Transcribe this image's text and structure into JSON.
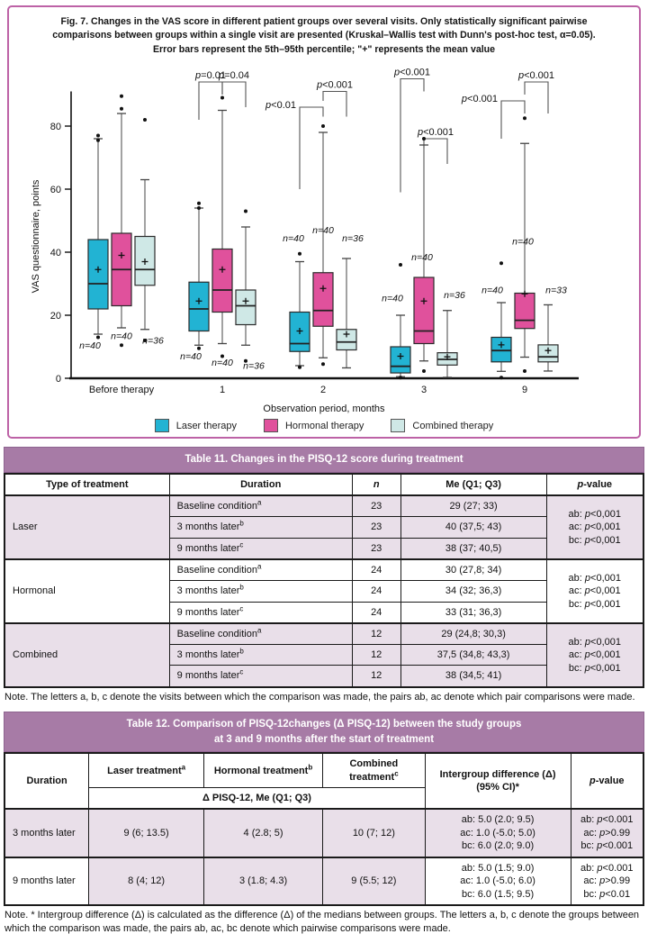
{
  "figure": {
    "caption_line1": "Fig. 7. Changes in the VAS score in different patient groups over several visits. Only statistically significant pairwise",
    "caption_line2": "comparisons between groups within a single visit are presented (Kruskal–Wallis test with Dunn's post-hoc test, α=0.05).",
    "caption_line3": "Error bars represent the 5th–95th percentile; \"+\" represents the mean value",
    "border_color": "#bd62a6"
  },
  "chart_data": {
    "type": "boxplot",
    "ylabel": "VAS questionnaire, points",
    "xlabel": "Observation period, months",
    "ylim": [
      0,
      96
    ],
    "yticks": [
      0,
      20,
      40,
      60,
      80
    ],
    "categories": [
      "Before therapy",
      "1",
      "2",
      "3",
      "9"
    ],
    "series": [
      {
        "name": "Laser therapy",
        "color": "#22b3d3",
        "boxes": [
          {
            "low": 14,
            "q1": 22,
            "med": 30,
            "q3": 44,
            "high": 76,
            "mean": 34.5,
            "outliers": [
              77,
              75.5,
              13
            ],
            "n": "n=40",
            "label_y": 9.5,
            "label_dx": -9
          },
          {
            "low": 10.5,
            "q1": 15,
            "med": 22,
            "q3": 30.5,
            "high": 54,
            "mean": 24.5,
            "outliers": [
              55.5,
              54,
              9.5
            ],
            "n": "n=40",
            "label_y": 6,
            "label_dx": -9
          },
          {
            "low": 4,
            "q1": 8.5,
            "med": 11,
            "q3": 21,
            "high": 37,
            "mean": 15,
            "outliers": [
              39.5,
              3.5
            ],
            "n": "n=40",
            "label_y": 43.5,
            "label_dx": -7
          },
          {
            "low": 0.5,
            "q1": 1.7,
            "med": 3.8,
            "q3": 10,
            "high": 20,
            "mean": 7,
            "outliers": [
              36,
              0.2
            ],
            "n": "n=40",
            "label_y": 24.5,
            "label_dx": -9
          },
          {
            "low": 2.2,
            "q1": 5.2,
            "med": 8.8,
            "q3": 13,
            "high": 24,
            "mean": 10.6,
            "outliers": [
              36.5,
              0.2
            ],
            "n": "n=40",
            "label_y": 27,
            "label_dx": -10
          }
        ]
      },
      {
        "name": "Hormonal therapy",
        "color": "#e0519c",
        "boxes": [
          {
            "low": 16,
            "q1": 23,
            "med": 34.5,
            "q3": 46,
            "high": 84,
            "mean": 39,
            "outliers": [
              89.5,
              85.5,
              10.5
            ],
            "n": "n=40",
            "label_y": 12.5,
            "label_dx": 0
          },
          {
            "low": 11,
            "q1": 21,
            "med": 28,
            "q3": 41,
            "high": 85,
            "mean": 34.5,
            "outliers": [
              89,
              7
            ],
            "n": "n=40",
            "label_y": 4,
            "label_dx": 0
          },
          {
            "low": 6.5,
            "q1": 16.5,
            "med": 21.5,
            "q3": 33.5,
            "high": 78,
            "mean": 28.5,
            "outliers": [
              80,
              4.5
            ],
            "n": "n=40",
            "label_y": 46,
            "label_dx": 0
          },
          {
            "low": 5.5,
            "q1": 11,
            "med": 15,
            "q3": 32,
            "high": 74,
            "mean": 24.5,
            "outliers": [
              76,
              2.3
            ],
            "n": "n=40",
            "label_y": 37.5,
            "label_dx": -2
          },
          {
            "low": 6.7,
            "q1": 15.8,
            "med": 18.4,
            "q3": 27,
            "high": 74.5,
            "mean": 26.8,
            "outliers": [
              82.5,
              2.3
            ],
            "n": "n=40",
            "label_y": 42.5,
            "label_dx": -2
          }
        ]
      },
      {
        "name": "Combined therapy",
        "color": "#cfe8e6",
        "boxes": [
          {
            "low": 15.5,
            "q1": 29.5,
            "med": 34.5,
            "q3": 45,
            "high": 63,
            "mean": 37,
            "outliers": [
              82,
              12
            ],
            "n": "n=36",
            "label_y": 11,
            "label_dx": 9
          },
          {
            "low": 10.5,
            "q1": 17,
            "med": 23,
            "q3": 28,
            "high": 48,
            "mean": 24.5,
            "outliers": [
              53,
              5.5
            ],
            "n": "n=36",
            "label_y": 3,
            "label_dx": 9
          },
          {
            "low": 3.3,
            "q1": 9,
            "med": 11.5,
            "q3": 15.5,
            "high": 38,
            "mean": 14,
            "outliers": [],
            "n": "n=36",
            "label_y": 43.5,
            "label_dx": 7
          },
          {
            "low": 0.3,
            "q1": 4.2,
            "med": 6,
            "q3": 8.1,
            "high": 21.5,
            "mean": 6.8,
            "outliers": [],
            "n": "n=36",
            "label_y": 25.5,
            "label_dx": 8
          },
          {
            "low": 2.3,
            "q1": 5.2,
            "med": 6.8,
            "q3": 10.6,
            "high": 23.3,
            "mean": 8.8,
            "outliers": [],
            "n": "n=33",
            "label_y": 27,
            "label_dx": 9
          }
        ]
      }
    ],
    "brackets": [
      {
        "cat": 1,
        "from": 0,
        "to": 1,
        "y": 94,
        "ldrop": 12,
        "rdrop": 4,
        "label": "p=0.01",
        "pos": "above"
      },
      {
        "cat": 1,
        "from": 1,
        "to": 2,
        "y": 94,
        "ldrop": 4,
        "rdrop": 8,
        "label": "p=0.04",
        "pos": "above"
      },
      {
        "cat": 2,
        "from": 0,
        "to": 1,
        "y": 86,
        "ldrop": 26,
        "rdrop": 3,
        "label": "p<0.01",
        "pos": "left"
      },
      {
        "cat": 2,
        "from": 1,
        "to": 2,
        "y": 91,
        "ldrop": 3,
        "rdrop": 8,
        "label": "p<0.001",
        "pos": "above"
      },
      {
        "cat": 3,
        "from": 0,
        "to": 1,
        "y": 95,
        "ldrop": 36,
        "rdrop": 4,
        "label": "p<0.001",
        "pos": "above"
      },
      {
        "cat": 3,
        "from": 1,
        "to": 2,
        "y": 76,
        "ldrop": 3,
        "rdrop": 8,
        "label": "p<0.001",
        "pos": "above"
      },
      {
        "cat": 4,
        "from": 0,
        "to": 1,
        "y": 88,
        "ldrop": 12,
        "rdrop": 4,
        "label": "p<0.001",
        "pos": "left"
      },
      {
        "cat": 4,
        "from": 1,
        "to": 2,
        "y": 94,
        "ldrop": 4,
        "rdrop": 10,
        "label": "p<0.001",
        "pos": "above"
      }
    ],
    "legend_position": "bottom"
  },
  "table11": {
    "title": "Table 11. Changes in the PISQ-12 score during treatment",
    "columns": [
      "Type of treatment",
      "Duration",
      "n",
      "Me (Q1; Q3)",
      "p-value"
    ],
    "groups": [
      {
        "treatment": "Laser",
        "shaded": true,
        "rows": [
          {
            "duration": "Baseline condition",
            "sup": "a",
            "n": "23",
            "me": "29 (27; 33)"
          },
          {
            "duration": "3 months later",
            "sup": "b",
            "n": "23",
            "me": "40 (37,5; 43)"
          },
          {
            "duration": "9 months later",
            "sup": "c",
            "n": "23",
            "me": "38 (37; 40,5)"
          }
        ],
        "p": [
          "ab: p<0,001",
          "ac: p<0,001",
          "bc: p<0,001"
        ]
      },
      {
        "treatment": "Hormonal",
        "shaded": false,
        "rows": [
          {
            "duration": "Baseline condition",
            "sup": "a",
            "n": "24",
            "me": "30 (27,8; 34)"
          },
          {
            "duration": "3 months later",
            "sup": "b",
            "n": "24",
            "me": "34 (32; 36,3)"
          },
          {
            "duration": "9 months later",
            "sup": "c",
            "n": "24",
            "me": "33 (31; 36,3)"
          }
        ],
        "p": [
          "ab: p<0,001",
          "ac: p<0,001",
          "bc: p<0,001"
        ]
      },
      {
        "treatment": "Combined",
        "shaded": true,
        "rows": [
          {
            "duration": "Baseline condition",
            "sup": "a",
            "n": "12",
            "me": "29 (24,8; 30,3)"
          },
          {
            "duration": "3 months later",
            "sup": "b",
            "n": "12",
            "me": "37,5 (34,8; 43,3)"
          },
          {
            "duration": "9 months later",
            "sup": "c",
            "n": "12",
            "me": "38 (34,5; 41)"
          }
        ],
        "p": [
          "ab: p<0,001",
          "ac: p<0,001",
          "bc: p<0,001"
        ]
      }
    ],
    "note": "Note. The letters a, b, c denote the visits between which the comparison was made, the pairs ab, ac denote which pair comparisons were made."
  },
  "table12": {
    "title_line1": "Table 12. Comparison of PISQ-12changes (Δ PISQ-12) between the study groups",
    "title_line2": "at 3 and 9 months after the start of treatment",
    "header": {
      "duration": "Duration",
      "treatments": [
        {
          "label": "Laser treatment",
          "sup": "a"
        },
        {
          "label": "Hormonal treatment",
          "sup": "b"
        },
        {
          "label": "Combined treatment",
          "sup": "c"
        }
      ],
      "subheader": "Δ PISQ-12, Me (Q1; Q3)",
      "intergroup_line1": "Intergroup difference (Δ)",
      "intergroup_line2": "(95% CI)*",
      "pvalue": "p-value"
    },
    "rows": [
      {
        "duration": "3 months later",
        "laser": "9 (6; 13.5)",
        "hormonal": "4 (2.8; 5)",
        "combined": "10 (7; 12)",
        "delta": [
          "ab: 5.0 (2.0; 9.5)",
          "ac: 1.0 (-5.0; 5.0)",
          "bc: 6.0 (2.0; 9.0)"
        ],
        "p": [
          "ab: p<0.001",
          "ac: p>0.99",
          "bc: p<0.001"
        ],
        "shaded": true
      },
      {
        "duration": "9 months later",
        "laser": "8 (4; 12)",
        "hormonal": "3 (1.8; 4.3)",
        "combined": "9 (5.5; 12)",
        "delta": [
          "ab: 5.0 (1.5; 9.0)",
          "ac: 1.0 (-5.0; 6.0)",
          "bc: 6.0 (1.5; 9.5)"
        ],
        "p": [
          "ab: p<0.001",
          "ac: p>0.99",
          "bc: p<0.01"
        ],
        "shaded": false
      }
    ],
    "note": "Note. * Intergroup difference (Δ) is calculated as the difference (Δ) of the medians between groups. The letters a, b, c denote the groups between which the comparison was made, the pairs ab, ac, bc denote which pairwise comparisons were made."
  }
}
